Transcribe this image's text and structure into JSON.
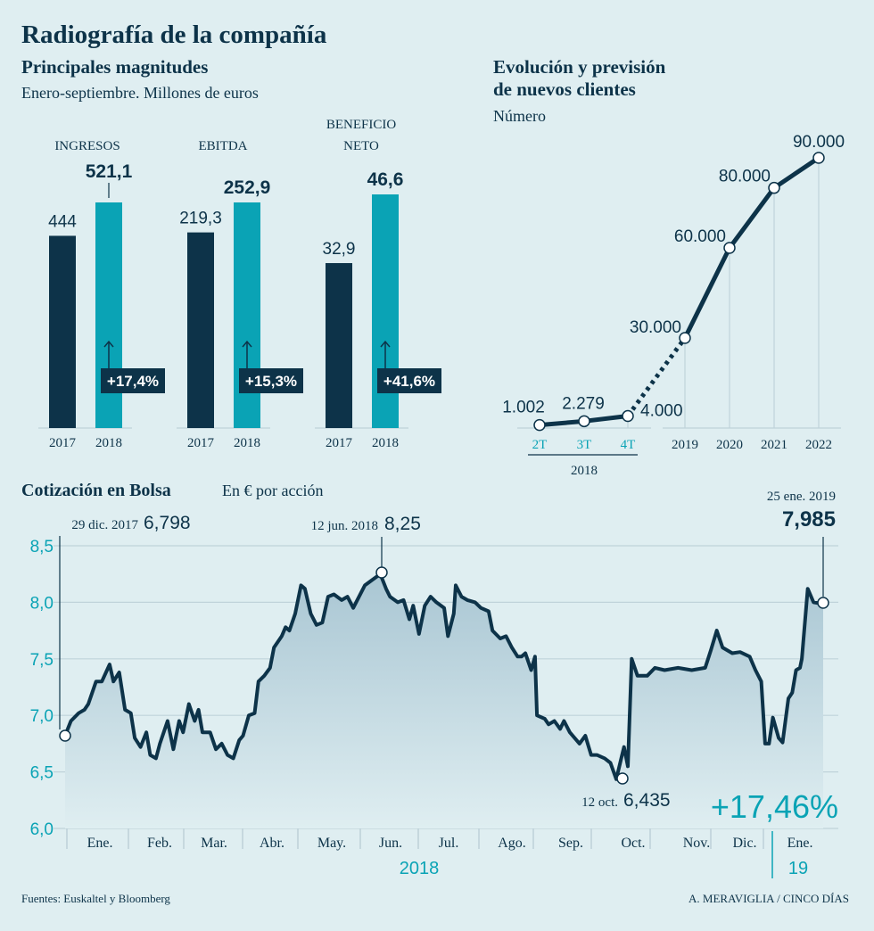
{
  "title": "Radiografía de la compañía",
  "colors": {
    "background": "#dfeef1",
    "dark": "#0d3349",
    "teal": "#0aa3b5"
  },
  "chart_data": [
    {
      "type": "bar",
      "title": "Principales magnitudes",
      "subtitle": "Enero-septiembre. Millones de euros",
      "categories": [
        "2017",
        "2018"
      ],
      "groups": [
        {
          "label": "INGRESOS",
          "values": [
            444,
            521.1
          ],
          "value_labels": [
            "444",
            "521,1"
          ],
          "change": "+17,4%"
        },
        {
          "label": "EBITDA",
          "values": [
            219.3,
            252.9
          ],
          "value_labels": [
            "219,3",
            "252,9"
          ],
          "change": "+15,3%"
        },
        {
          "label_lines": [
            "BENEFICIO",
            "NETO"
          ],
          "values": [
            32.9,
            46.6
          ],
          "value_labels": [
            "32,9",
            "46,6"
          ],
          "change": "+41,6%"
        }
      ]
    },
    {
      "type": "line",
      "title_lines": [
        "Evolución y previsión",
        "de nuevos clientes"
      ],
      "subtitle": "Número",
      "x": [
        "2T",
        "3T",
        "4T",
        "2019",
        "2020",
        "2021",
        "2022"
      ],
      "x_group_label": "2018",
      "values": [
        1002,
        2279,
        4000,
        30000,
        60000,
        80000,
        90000
      ],
      "value_labels": [
        "1.002",
        "2.279",
        "4.000",
        "30.000",
        "60.000",
        "80.000",
        "90.000"
      ],
      "dashed_segment": "4T-2019",
      "ylim": [
        0,
        90000
      ]
    },
    {
      "type": "area",
      "title": "Cotización en Bolsa",
      "subtitle": "En € por acción",
      "ylim": [
        6.0,
        8.5
      ],
      "yticks": [
        "6,0",
        "6,5",
        "7,0",
        "7,5",
        "8,0",
        "8,5"
      ],
      "ytick_values": [
        6.0,
        6.5,
        7.0,
        7.5,
        8.0,
        8.5
      ],
      "months": [
        "Ene.",
        "Feb.",
        "Mar.",
        "Abr.",
        "May.",
        "Jun.",
        "Jul.",
        "Ago.",
        "Sep.",
        "Oct.",
        "Nov.",
        "Dic.",
        "Ene."
      ],
      "year_labels": [
        "2018",
        "19"
      ],
      "x_unit": "days since 29 dic. 2017",
      "points": [
        [
          0,
          6.82
        ],
        [
          3,
          6.95
        ],
        [
          7,
          7.02
        ],
        [
          10,
          7.05
        ],
        [
          12,
          7.1
        ],
        [
          16,
          7.3
        ],
        [
          19,
          7.3
        ],
        [
          23,
          7.45
        ],
        [
          25,
          7.3
        ],
        [
          28,
          7.38
        ],
        [
          31,
          7.05
        ],
        [
          34,
          7.02
        ],
        [
          36,
          6.8
        ],
        [
          39,
          6.72
        ],
        [
          42,
          6.85
        ],
        [
          44,
          6.65
        ],
        [
          47,
          6.62
        ],
        [
          49,
          6.75
        ],
        [
          53,
          6.95
        ],
        [
          56,
          6.7
        ],
        [
          59,
          6.95
        ],
        [
          61,
          6.85
        ],
        [
          64,
          7.1
        ],
        [
          67,
          6.95
        ],
        [
          69,
          7.05
        ],
        [
          71,
          6.85
        ],
        [
          75,
          6.85
        ],
        [
          78,
          6.7
        ],
        [
          81,
          6.75
        ],
        [
          84,
          6.65
        ],
        [
          87,
          6.62
        ],
        [
          90,
          6.78
        ],
        [
          92,
          6.82
        ],
        [
          95,
          7.0
        ],
        [
          98,
          7.02
        ],
        [
          100,
          7.3
        ],
        [
          103,
          7.35
        ],
        [
          106,
          7.42
        ],
        [
          108,
          7.6
        ],
        [
          112,
          7.7
        ],
        [
          114,
          7.78
        ],
        [
          116,
          7.75
        ],
        [
          119,
          7.9
        ],
        [
          122,
          8.15
        ],
        [
          124,
          8.12
        ],
        [
          127,
          7.9
        ],
        [
          130,
          7.8
        ],
        [
          133,
          7.82
        ],
        [
          136,
          8.05
        ],
        [
          139,
          8.07
        ],
        [
          143,
          8.02
        ],
        [
          146,
          8.05
        ],
        [
          149,
          7.95
        ],
        [
          152,
          8.05
        ],
        [
          155,
          8.15
        ],
        [
          159,
          8.2
        ],
        [
          163,
          8.25
        ],
        [
          166,
          8.12
        ],
        [
          168,
          8.05
        ],
        [
          172,
          8.0
        ],
        [
          175,
          8.02
        ],
        [
          178,
          7.85
        ],
        [
          180,
          7.97
        ],
        [
          183,
          7.72
        ],
        [
          186,
          7.97
        ],
        [
          189,
          8.05
        ],
        [
          192,
          8.0
        ],
        [
          196,
          7.95
        ],
        [
          198,
          7.7
        ],
        [
          201,
          7.9
        ],
        [
          202,
          8.15
        ],
        [
          205,
          8.05
        ],
        [
          208,
          8.02
        ],
        [
          212,
          8.0
        ],
        [
          215,
          7.95
        ],
        [
          219,
          7.92
        ],
        [
          221,
          7.75
        ],
        [
          225,
          7.68
        ],
        [
          228,
          7.7
        ],
        [
          231,
          7.6
        ],
        [
          234,
          7.52
        ],
        [
          236,
          7.52
        ],
        [
          238,
          7.55
        ],
        [
          241,
          7.4
        ],
        [
          243,
          7.52
        ],
        [
          244,
          7.0
        ],
        [
          248,
          6.97
        ],
        [
          250,
          6.92
        ],
        [
          253,
          6.95
        ],
        [
          256,
          6.88
        ],
        [
          258,
          6.95
        ],
        [
          261,
          6.85
        ],
        [
          266,
          6.75
        ],
        [
          269,
          6.82
        ],
        [
          272,
          6.65
        ],
        [
          275,
          6.65
        ],
        [
          279,
          6.62
        ],
        [
          282,
          6.58
        ],
        [
          285,
          6.435
        ],
        [
          288,
          6.65
        ],
        [
          289,
          6.72
        ],
        [
          291,
          6.55
        ],
        [
          293,
          7.5
        ],
        [
          296,
          7.35
        ],
        [
          301,
          7.35
        ],
        [
          305,
          7.42
        ],
        [
          310,
          7.4
        ],
        [
          317,
          7.42
        ],
        [
          324,
          7.4
        ],
        [
          331,
          7.42
        ],
        [
          334,
          7.58
        ],
        [
          337,
          7.75
        ],
        [
          340,
          7.6
        ],
        [
          345,
          7.55
        ],
        [
          349,
          7.56
        ],
        [
          354,
          7.52
        ],
        [
          357,
          7.4
        ],
        [
          360,
          7.3
        ],
        [
          362,
          6.75
        ],
        [
          364,
          6.75
        ],
        [
          366,
          6.98
        ],
        [
          369,
          6.8
        ],
        [
          371,
          6.76
        ],
        [
          374,
          7.15
        ],
        [
          376,
          7.2
        ],
        [
          378,
          7.4
        ],
        [
          380,
          7.42
        ],
        [
          381,
          7.5
        ],
        [
          384,
          8.12
        ],
        [
          387,
          8.0
        ],
        [
          392,
          7.985
        ]
      ],
      "annotations": [
        {
          "date": "29 dic. 2017",
          "value": "6,798"
        },
        {
          "date": "12 jun. 2018",
          "value": "8,25"
        },
        {
          "date": "12 oct.",
          "value": "6,435"
        },
        {
          "date": "25 ene. 2019",
          "value": "7,985"
        }
      ],
      "change": "+17,46%"
    }
  ],
  "footer": {
    "sources": "Fuentes: Euskaltel y Bloomberg",
    "credit": "A. MERAVIGLIA / CINCO DÍAS"
  }
}
